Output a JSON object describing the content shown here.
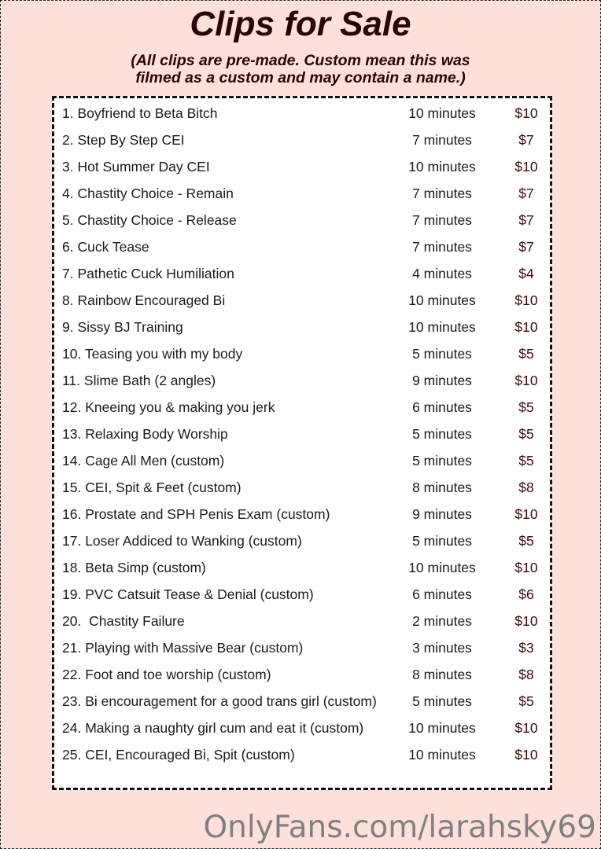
{
  "title": "Clips for Sale",
  "subtitle_line1": "(All clips are pre-made. Custom mean this was",
  "subtitle_line2": "filmed as a custom and may contain a name.)",
  "clips": [
    {
      "name": "1. Boyfriend to Beta Bitch",
      "duration": "10 minutes",
      "price": "$10"
    },
    {
      "name": "2. Step By Step CEI",
      "duration": "7 minutes",
      "price": "$7"
    },
    {
      "name": "3. Hot Summer Day CEI",
      "duration": "10 minutes",
      "price": "$10"
    },
    {
      "name": "4. Chastity Choice - Remain",
      "duration": "7 minutes",
      "price": "$7"
    },
    {
      "name": "5. Chastity Choice - Release",
      "duration": "7 minutes",
      "price": "$7"
    },
    {
      "name": "6. Cuck Tease",
      "duration": "7 minutes",
      "price": "$7"
    },
    {
      "name": "7. Pathetic Cuck Humiliation",
      "duration": "4 minutes",
      "price": "$4"
    },
    {
      "name": "8. Rainbow Encouraged Bi",
      "duration": "10 minutes",
      "price": "$10"
    },
    {
      "name": "9. Sissy BJ Training",
      "duration": "10 minutes",
      "price": "$10"
    },
    {
      "name": "10. Teasing you with my body",
      "duration": "5 minutes",
      "price": "$5"
    },
    {
      "name": "11. Slime Bath (2 angles)",
      "duration": "9 minutes",
      "price": "$10"
    },
    {
      "name": "12. Kneeing you & making you jerk",
      "duration": "6 minutes",
      "price": "$5"
    },
    {
      "name": "13. Relaxing Body Worship",
      "duration": "5 minutes",
      "price": "$5"
    },
    {
      "name": "14. Cage All Men (custom)",
      "duration": "5 minutes",
      "price": "$5"
    },
    {
      "name": "15. CEI, Spit & Feet (custom)",
      "duration": "8 minutes",
      "price": "$8"
    },
    {
      "name": "16. Prostate and SPH Penis Exam (custom)",
      "duration": "9 minutes",
      "price": "$10"
    },
    {
      "name": "17. Loser Addiced to Wanking (custom)",
      "duration": "5 minutes",
      "price": "$5"
    },
    {
      "name": "18. Beta Simp (custom)",
      "duration": "10 minutes",
      "price": "$10"
    },
    {
      "name": "19. PVC Catsuit Tease & Denial (custom)",
      "duration": "6 minutes",
      "price": "$6"
    },
    {
      "name": "20.  Chastity Failure",
      "duration": "2 minutes",
      "price": "$10"
    },
    {
      "name": "21. Playing with Massive Bear (custom)",
      "duration": "3 minutes",
      "price": "$3"
    },
    {
      "name": "22. Foot and toe worship (custom)",
      "duration": "8 minutes",
      "price": "$8"
    },
    {
      "name": "23. Bi encouragement for a good trans girl (custom)",
      "duration": "5 minutes",
      "price": "$5"
    },
    {
      "name": "24. Making a naughty girl cum and eat it (custom)",
      "duration": "10 minutes",
      "price": "$10"
    },
    {
      "name": "25. CEI, Encouraged Bi, Spit (custom)",
      "duration": "10 minutes",
      "price": "$10"
    }
  ],
  "watermark": "OnlyFans.com/larahsky69",
  "colors": {
    "background": "#fde0d9",
    "title": "#2b0306",
    "price": "#3a0a0a",
    "watermark": "#808080"
  }
}
